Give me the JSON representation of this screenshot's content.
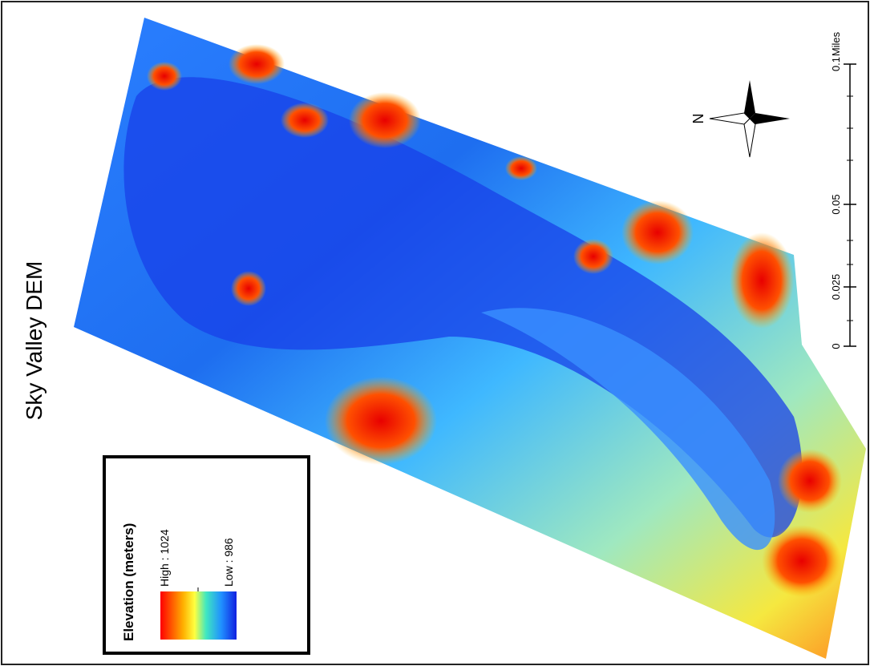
{
  "title": "Sky Valley DEM",
  "legend": {
    "title": "Elevation (meters)",
    "high": "High : 1024",
    "low": "Low : 986"
  },
  "scale_bar": {
    "ticks": [
      "0",
      "0.025",
      "0.05",
      "0.1"
    ],
    "unit": "Miles"
  },
  "north_arrow": {
    "label": "N"
  }
}
